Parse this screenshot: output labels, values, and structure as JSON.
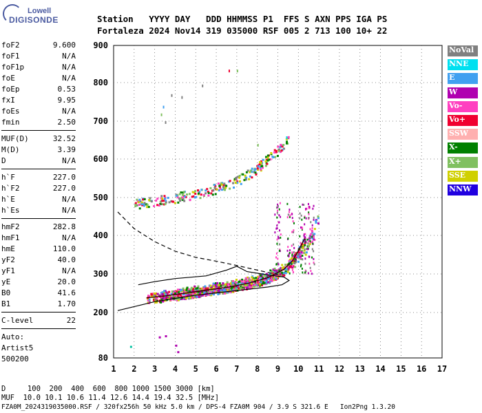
{
  "logo": {
    "top": "Lowell",
    "bottom": "DIGISONDE"
  },
  "header": {
    "line1": "Station   YYYY DAY   DDD HHMMSS P1  FFS S AXN PPS IGA PS",
    "line2": "Fortaleza 2024 Nov14 319 035000 RSF 005 2 713 100 10+ 22"
  },
  "param_groups": [
    [
      {
        "name": "foF2",
        "value": "9.600"
      },
      {
        "name": "foF1",
        "value": "N/A"
      },
      {
        "name": "foF1p",
        "value": "N/A"
      },
      {
        "name": "foE",
        "value": "N/A"
      },
      {
        "name": "foEp",
        "value": "0.53"
      },
      {
        "name": "fxI",
        "value": "9.95"
      },
      {
        "name": "foEs",
        "value": "N/A"
      },
      {
        "name": "fmin",
        "value": "2.50"
      }
    ],
    [
      {
        "name": "MUF(D)",
        "value": "32.52"
      },
      {
        "name": "M(D)",
        "value": "3.39"
      },
      {
        "name": "D",
        "value": "N/A"
      }
    ],
    [
      {
        "name": "h`F",
        "value": "227.0"
      },
      {
        "name": "h`F2",
        "value": "227.0"
      },
      {
        "name": "h`E",
        "value": "N/A"
      },
      {
        "name": "h`Es",
        "value": "N/A"
      }
    ],
    [
      {
        "name": "hmF2",
        "value": "282.8"
      },
      {
        "name": "hmF1",
        "value": "N/A"
      },
      {
        "name": "hmE",
        "value": "110.0"
      },
      {
        "name": "yF2",
        "value": "40.0"
      },
      {
        "name": "yF1",
        "value": "N/A"
      },
      {
        "name": "yE",
        "value": "20.0"
      },
      {
        "name": "B0",
        "value": "41.6"
      },
      {
        "name": "B1",
        "value": "1.70"
      }
    ],
    [
      {
        "name": "C-level",
        "value": "22"
      }
    ]
  ],
  "notes": [
    "Auto:",
    "Artist5",
    "500200"
  ],
  "legend": [
    {
      "label": "NoVal",
      "color": "#808080"
    },
    {
      "label": "NNE",
      "color": "#00e0f0"
    },
    {
      "label": "E",
      "color": "#40a0f0"
    },
    {
      "label": "W",
      "color": "#b000b0"
    },
    {
      "label": "Vo-",
      "color": "#ff40c0"
    },
    {
      "label": "Vo+",
      "color": "#f00030"
    },
    {
      "label": "SSW",
      "color": "#ffb0b0"
    },
    {
      "label": "X-",
      "color": "#008000"
    },
    {
      "label": "X+",
      "color": "#80c060"
    },
    {
      "label": "SSE",
      "color": "#d0d000"
    },
    {
      "label": "NNW",
      "color": "#2000e0"
    }
  ],
  "footer": {
    "d_line": "D     100  200  400  600  800 1000 1500 3000 [km]",
    "muf_line": "MUF  10.0 10.1 10.6 11.4 12.6 14.4 19.4 32.5 [MHz]",
    "file_line": "FZA0M_2024319035000.RSF / 320fx256h 50 kHz 5.0 km / DPS-4 FZA0M 904 / 3.9 S 321.6 E   Ion2Png 1.3.20"
  },
  "chart_data": {
    "type": "scatter",
    "xlim": [
      1,
      17
    ],
    "ylim": [
      80,
      900
    ],
    "x_ticks": [
      1,
      2,
      3,
      4,
      5,
      6,
      7,
      8,
      9,
      10,
      11,
      12,
      13,
      14,
      15,
      16,
      17
    ],
    "y_ticks": [
      80,
      200,
      300,
      400,
      500,
      600,
      700,
      800,
      900
    ],
    "grid": "dotted",
    "legend_position": "right",
    "profile_solid": [
      {
        "x": 1.2,
        "y": 205
      },
      {
        "x": 3.0,
        "y": 228
      },
      {
        "x": 5.0,
        "y": 245
      },
      {
        "x": 7.0,
        "y": 257
      },
      {
        "x": 8.5,
        "y": 266
      },
      {
        "x": 9.2,
        "y": 272
      },
      {
        "x": 9.55,
        "y": 283
      },
      {
        "x": 9.3,
        "y": 292
      },
      {
        "x": 8.6,
        "y": 297
      },
      {
        "x": 7.5,
        "y": 306
      },
      {
        "x": 7.0,
        "y": 320
      },
      {
        "x": 6.5,
        "y": 310
      },
      {
        "x": 5.5,
        "y": 295
      },
      {
        "x": 4.0,
        "y": 288
      },
      {
        "x": 3.0,
        "y": 280
      },
      {
        "x": 2.2,
        "y": 272
      }
    ],
    "profile_dashed": [
      {
        "x": 1.2,
        "y": 462
      },
      {
        "x": 2.0,
        "y": 418
      },
      {
        "x": 3.0,
        "y": 384
      },
      {
        "x": 4.0,
        "y": 359
      },
      {
        "x": 5.0,
        "y": 343
      },
      {
        "x": 6.0,
        "y": 333
      },
      {
        "x": 7.0,
        "y": 322
      },
      {
        "x": 8.0,
        "y": 310
      },
      {
        "x": 9.0,
        "y": 298
      }
    ],
    "trace_o": [
      {
        "x": 2.6,
        "y": 238
      },
      {
        "x": 3.5,
        "y": 243
      },
      {
        "x": 4.5,
        "y": 250
      },
      {
        "x": 5.5,
        "y": 258
      },
      {
        "x": 6.5,
        "y": 265
      },
      {
        "x": 7.5,
        "y": 275
      },
      {
        "x": 8.5,
        "y": 290
      },
      {
        "x": 9.3,
        "y": 312
      },
      {
        "x": 9.7,
        "y": 333
      },
      {
        "x": 10.0,
        "y": 360
      },
      {
        "x": 10.3,
        "y": 392
      }
    ],
    "trace_x": [
      {
        "x": 3.2,
        "y": 243
      },
      {
        "x": 4.2,
        "y": 250
      },
      {
        "x": 5.2,
        "y": 258
      },
      {
        "x": 6.2,
        "y": 266
      },
      {
        "x": 7.2,
        "y": 276
      },
      {
        "x": 8.2,
        "y": 290
      },
      {
        "x": 9.0,
        "y": 306
      },
      {
        "x": 9.8,
        "y": 335
      },
      {
        "x": 10.3,
        "y": 365
      },
      {
        "x": 10.7,
        "y": 410
      },
      {
        "x": 11.0,
        "y": 460
      }
    ],
    "trace_2hop": [
      {
        "x": 2.0,
        "y": 485
      },
      {
        "x": 3.0,
        "y": 492
      },
      {
        "x": 4.0,
        "y": 500
      },
      {
        "x": 5.0,
        "y": 512
      },
      {
        "x": 6.0,
        "y": 525
      },
      {
        "x": 7.0,
        "y": 545
      },
      {
        "x": 8.0,
        "y": 578
      },
      {
        "x": 8.6,
        "y": 605
      },
      {
        "x": 9.3,
        "y": 640
      },
      {
        "x": 9.5,
        "y": 660
      }
    ]
  }
}
